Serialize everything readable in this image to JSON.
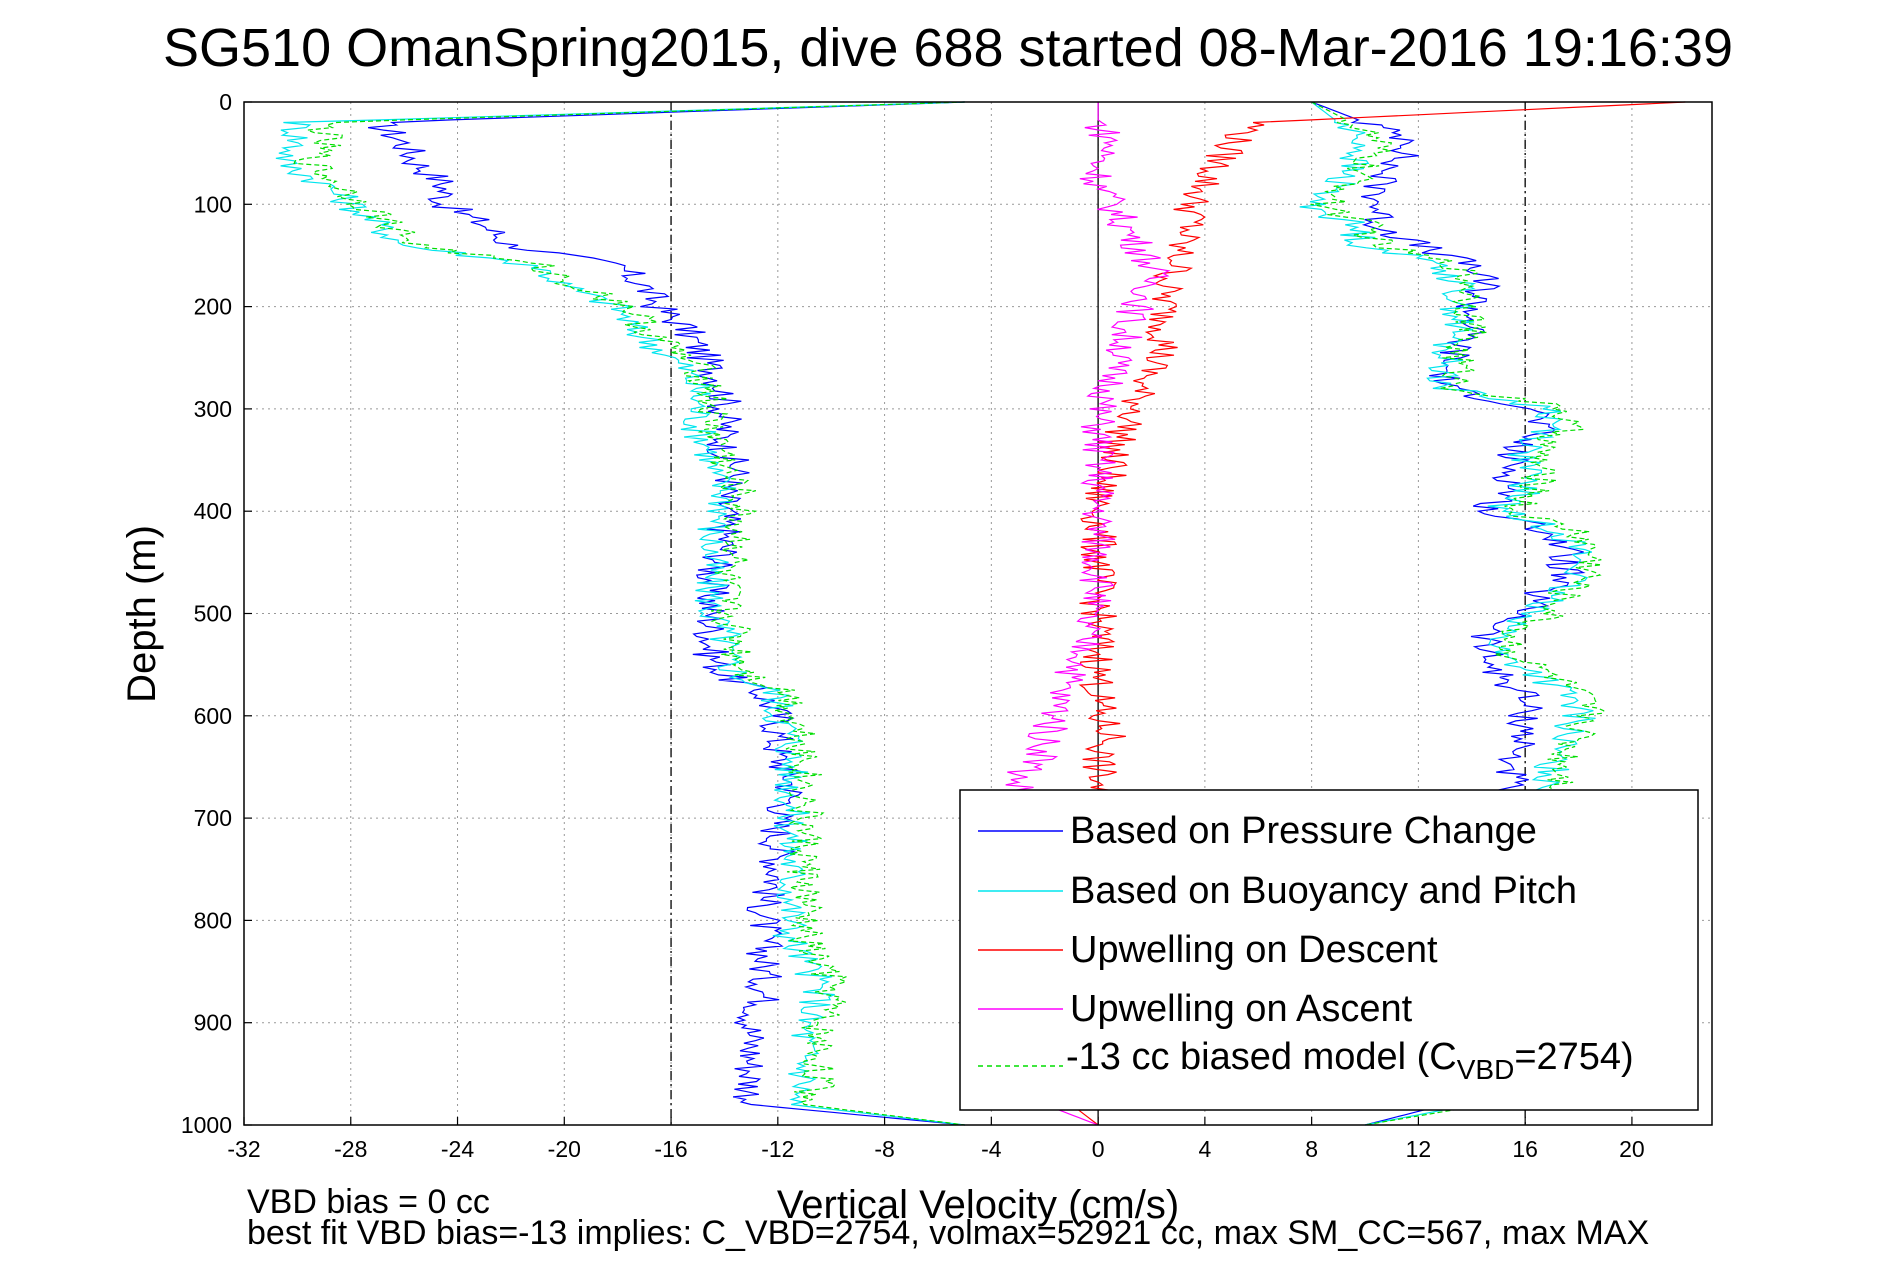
{
  "chart_data": {
    "type": "line",
    "title": "SG510 OmanSpring2015, dive 688 started 08-Mar-2016 19:16:39",
    "xlabel": "Vertical Velocity (cm/s)",
    "ylabel": "Depth (m)",
    "xlim": [
      -32,
      23
    ],
    "ylim": [
      0,
      1000
    ],
    "y_reversed": true,
    "xticks": [
      "-32",
      "-28",
      "-24",
      "-20",
      "-16",
      "-12",
      "-8",
      "-4",
      "0",
      "4",
      "8",
      "12",
      "16",
      "20"
    ],
    "yticks": [
      "0",
      "100",
      "200",
      "300",
      "400",
      "500",
      "600",
      "700",
      "800",
      "900",
      "1000"
    ],
    "grid": true,
    "legend_position": "bottom-right",
    "reference_lines_x": [
      -16,
      0,
      16
    ],
    "depths": [
      0,
      20,
      40,
      60,
      80,
      100,
      120,
      140,
      160,
      180,
      200,
      220,
      240,
      260,
      280,
      300,
      320,
      340,
      360,
      380,
      400,
      420,
      440,
      460,
      480,
      500,
      520,
      540,
      560,
      580,
      600,
      620,
      640,
      660,
      680,
      700,
      720,
      740,
      760,
      780,
      800,
      820,
      840,
      860,
      880,
      900,
      920,
      940,
      960,
      980,
      1000
    ],
    "series": [
      {
        "name": "Based on Pressure Change",
        "color": "#0000ff",
        "style": "solid",
        "descent": [
          -5,
          -27,
          -26,
          -25.5,
          -24.5,
          -24.5,
          -23,
          -22,
          -18,
          -17,
          -16.5,
          -15.5,
          -15,
          -14.5,
          -14,
          -14,
          -14,
          -14,
          -13.5,
          -14,
          -14,
          -14,
          -14,
          -14.5,
          -14.5,
          -14.5,
          -14.5,
          -14.5,
          -14,
          -12.5,
          -12,
          -12,
          -12,
          -11.5,
          -11.5,
          -12,
          -12,
          -12,
          -12,
          -12.5,
          -12.5,
          -12.5,
          -12.5,
          -12.5,
          -12.5,
          -13,
          -13,
          -13,
          -13,
          -13,
          -5
        ],
        "ascent": [
          8,
          10,
          12,
          11,
          10.5,
          10.5,
          10.5,
          12,
          14,
          14.5,
          14,
          14,
          13.5,
          13,
          13,
          16.5,
          16.5,
          15.5,
          15.5,
          15.5,
          14.5,
          17,
          17.5,
          17.5,
          16.5,
          16,
          14.5,
          14.5,
          15,
          16,
          16,
          16,
          15.5,
          15.5,
          15,
          14,
          14,
          14,
          14,
          14,
          14,
          14,
          14,
          14,
          14,
          14,
          14,
          14,
          14,
          13,
          10
        ]
      },
      {
        "name": "Based on Buoyancy and Pitch",
        "color": "#00e5ee",
        "style": "solid",
        "descent": [
          -5,
          -30,
          -30,
          -30.5,
          -29,
          -28,
          -27,
          -26,
          -21,
          -20,
          -18,
          -17.5,
          -16.5,
          -15.5,
          -15,
          -15,
          -15,
          -14.5,
          -14.5,
          -14,
          -14,
          -14.5,
          -14.5,
          -14.5,
          -14.5,
          -14.5,
          -14,
          -14,
          -13.5,
          -12,
          -12,
          -11.5,
          -11.5,
          -11.5,
          -11.5,
          -11.5,
          -11.5,
          -11.5,
          -11.5,
          -11.5,
          -11.5,
          -11.5,
          -11,
          -10.5,
          -10.5,
          -11,
          -11,
          -11,
          -11,
          -11.5,
          -5
        ],
        "ascent": [
          8,
          9,
          10,
          9.5,
          9,
          8,
          9.5,
          10,
          13,
          13.5,
          13.5,
          13.5,
          13,
          13,
          13,
          17,
          17,
          16,
          16,
          16,
          15,
          17.5,
          18,
          18,
          17,
          16.5,
          15,
          15,
          16.5,
          17.5,
          18,
          17.5,
          17,
          17,
          17,
          16.5,
          16.5,
          16.5,
          16.5,
          16.5,
          16.5,
          16.5,
          16.5,
          16.5,
          16.5,
          16.5,
          16.5,
          16.5,
          16.5,
          14,
          10
        ]
      },
      {
        "name": "Upwelling on Descent",
        "color": "#ff0000",
        "style": "solid",
        "profile": [
          22,
          6,
          5,
          4.5,
          4,
          3.5,
          3.5,
          3,
          3,
          2.5,
          2.5,
          2.5,
          2.5,
          2,
          1.5,
          1.5,
          1,
          0.5,
          0.5,
          0,
          0,
          0,
          0,
          0,
          0,
          0,
          0,
          0,
          0,
          0,
          0,
          0.5,
          0,
          0,
          0,
          0,
          0,
          0,
          0,
          0,
          0,
          0,
          0,
          0,
          0,
          0,
          0,
          0,
          0,
          -1,
          0
        ]
      },
      {
        "name": "Upwelling on Ascent",
        "color": "#ff00ff",
        "style": "solid",
        "profile": [
          0,
          0,
          0.5,
          0,
          0,
          0.5,
          1,
          1.5,
          2,
          2,
          1.5,
          1,
          1,
          0.5,
          0.5,
          0,
          0,
          0,
          0,
          0,
          0,
          0,
          0,
          0,
          0,
          -0.5,
          -0.5,
          -0.5,
          -1,
          -1.5,
          -1.5,
          -2,
          -2,
          -3,
          -3,
          -3,
          -3,
          -3,
          -3,
          -3,
          -3,
          -3,
          -3,
          -3,
          -3,
          -3,
          -3,
          -3,
          -3,
          -2,
          0
        ]
      },
      {
        "name": "-13 cc biased model (C_VBD=2754)",
        "color": "#00dd00",
        "style": "dashed",
        "descent": [
          -5,
          -29,
          -29,
          -29.5,
          -28.5,
          -27.5,
          -26.5,
          -25.5,
          -21,
          -19.5,
          -17.5,
          -17,
          -16,
          -15,
          -14.5,
          -14.5,
          -14.5,
          -14,
          -14,
          -13.5,
          -13.5,
          -13.5,
          -13.5,
          -14,
          -14,
          -14,
          -13.5,
          -13.5,
          -13,
          -11.5,
          -11.5,
          -11,
          -11,
          -11,
          -11,
          -11,
          -11,
          -11,
          -11,
          -11,
          -11,
          -11,
          -10.5,
          -10,
          -10,
          -10.5,
          -10.5,
          -10.5,
          -10.5,
          -11,
          -5
        ],
        "ascent": [
          8,
          9.5,
          10.5,
          10,
          9.5,
          8.5,
          10,
          10.5,
          13.5,
          14,
          14,
          14,
          13.5,
          13.5,
          13.5,
          17.5,
          17.5,
          16.5,
          16.5,
          16.5,
          15.5,
          18,
          18.5,
          18.5,
          17.5,
          17,
          15.5,
          15.5,
          17,
          18,
          18.5,
          18,
          17.5,
          17.5,
          17.5,
          17,
          17,
          17,
          17,
          17,
          17,
          17,
          17,
          17,
          17,
          17,
          17,
          17,
          17,
          14.5,
          10
        ]
      }
    ],
    "legend": {
      "entries": [
        "Based on Pressure Change",
        "Based on Buoyancy and Pitch",
        "Upwelling on Descent",
        "Upwelling on Ascent"
      ],
      "last_prefix": "-13 cc biased model (C",
      "last_sub": "VBD",
      "last_suffix": "=2754)"
    },
    "annotations": [
      "VBD bias = 0 cc",
      "best fit VBD bias=-13 implies: C_VBD=2754, volmax=52921 cc, max SM_CC=567, max MAX"
    ]
  }
}
